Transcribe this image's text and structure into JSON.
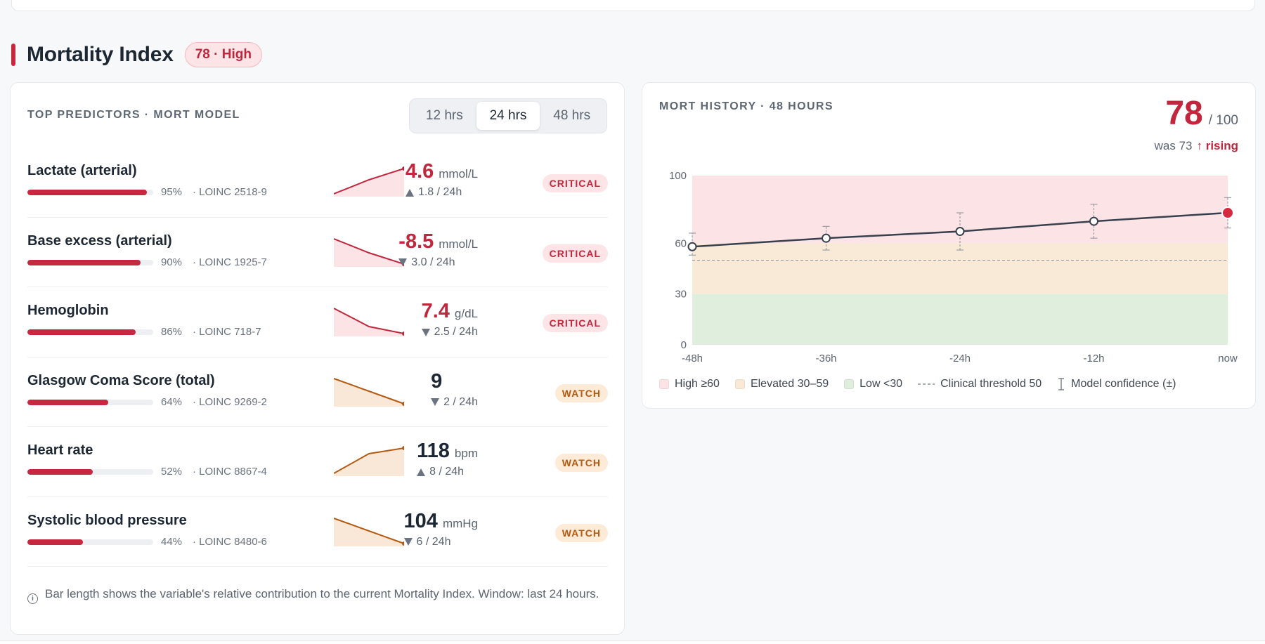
{
  "section": {
    "title": "Mortality Index",
    "badge": "78 · High"
  },
  "predictors": {
    "label": "TOP PREDICTORS · MORT MODEL",
    "tabs": [
      {
        "label": "12 hrs",
        "active": false
      },
      {
        "label": "24 hrs",
        "active": true
      },
      {
        "label": "48 hrs",
        "active": false
      }
    ],
    "rows": [
      {
        "name": "Lactate (arterial)",
        "pct": "95%",
        "pct_value": 0.95,
        "loinc": "· LOINC 2518-9",
        "value": "4.6",
        "unit": "mmol/L",
        "delta": "1.8 / 24h",
        "dir": "up",
        "status": "CRITICAL",
        "severity": "crit",
        "spark": [
          0.1,
          0.6,
          1.0
        ]
      },
      {
        "name": "Base excess (arterial)",
        "pct": "90%",
        "pct_value": 0.9,
        "loinc": "· LOINC 1925-7",
        "value": "-8.5",
        "unit": "mmol/L",
        "delta": "3.0 / 24h",
        "dir": "down",
        "status": "CRITICAL",
        "severity": "crit",
        "spark": [
          1.0,
          0.5,
          0.1
        ]
      },
      {
        "name": "Hemoglobin",
        "pct": "86%",
        "pct_value": 0.86,
        "loinc": "· LOINC 718-7",
        "value": "7.4",
        "unit": "g/dL",
        "delta": "2.5 / 24h",
        "dir": "down",
        "status": "CRITICAL",
        "severity": "crit",
        "spark": [
          1.0,
          0.35,
          0.1
        ]
      },
      {
        "name": "Glasgow Coma Score (total)",
        "pct": "64%",
        "pct_value": 0.64,
        "loinc": "· LOINC 9269-2",
        "value": "9",
        "unit": "",
        "delta": "2 / 24h",
        "dir": "down",
        "status": "WATCH",
        "severity": "watch",
        "spark": [
          1.0,
          0.55,
          0.1
        ]
      },
      {
        "name": "Heart rate",
        "pct": "52%",
        "pct_value": 0.52,
        "loinc": "· LOINC 8867-4",
        "value": "118",
        "unit": "bpm",
        "delta": "8 / 24h",
        "dir": "up",
        "status": "WATCH",
        "severity": "watch",
        "spark": [
          0.1,
          0.8,
          1.0
        ]
      },
      {
        "name": "Systolic blood pressure",
        "pct": "44%",
        "pct_value": 0.44,
        "loinc": "· LOINC 8480-6",
        "value": "104",
        "unit": "mmHg",
        "delta": "6 / 24h",
        "dir": "down",
        "status": "WATCH",
        "severity": "watch",
        "spark": [
          1.0,
          0.55,
          0.1
        ]
      }
    ],
    "footnote": "Bar length shows the variable's relative contribution to the current Mortality Index. Window: last 24 hours.",
    "info_icon": "info-icon"
  },
  "history": {
    "label": "MORT HISTORY · 48 HOURS",
    "score": "78",
    "score_den": "/ 100",
    "was": "was 73",
    "trend": "↑ rising",
    "legend": [
      {
        "label": "High ≥60",
        "color": "#fbe3e6",
        "kind": "swatch"
      },
      {
        "label": "Elevated 30–59",
        "color": "#f9ead7",
        "kind": "swatch"
      },
      {
        "label": "Low <30",
        "color": "#e0eedd",
        "kind": "swatch"
      },
      {
        "label": "Clinical threshold 50",
        "color": "#8a9099",
        "kind": "dash"
      },
      {
        "label": "Model confidence (±)",
        "color": "#6b7380",
        "kind": "errorbar"
      }
    ]
  },
  "chart_data": {
    "type": "line",
    "x": [
      "-48h",
      "-36h",
      "-24h",
      "-12h",
      "now"
    ],
    "series": [
      {
        "values": [
          58,
          63,
          67,
          73,
          78
        ],
        "err_low": [
          53,
          56,
          56,
          63,
          69
        ],
        "err_high": [
          66,
          70,
          78,
          83,
          87
        ]
      }
    ],
    "ylim": [
      0,
      100
    ],
    "yticks": [
      0,
      30,
      60,
      100
    ],
    "bands": [
      {
        "from": 60,
        "to": 100,
        "color": "#fbe3e6"
      },
      {
        "from": 30,
        "to": 60,
        "color": "#f9ead7"
      },
      {
        "from": 0,
        "to": 30,
        "color": "#e0eedd"
      }
    ],
    "threshold": 50,
    "colors": {
      "line": "#37404c",
      "current": "#d6283f",
      "critical": "#c2263d",
      "watch": "#b45a12",
      "crit_fill": "#fbe3e6",
      "watch_fill": "#f9e7d8"
    }
  }
}
